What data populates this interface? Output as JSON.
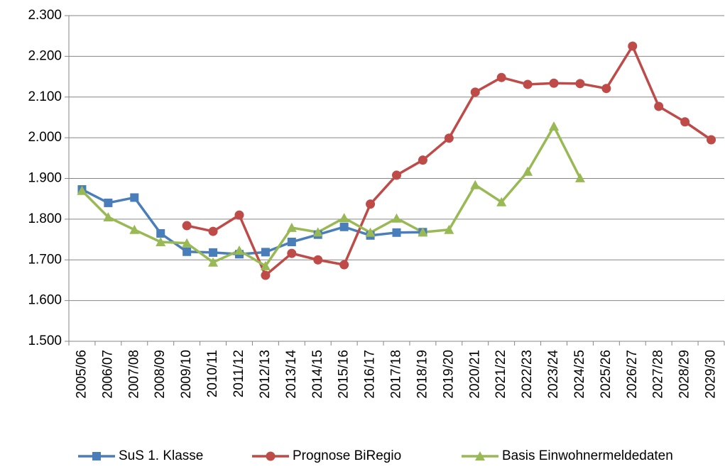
{
  "chart_data": {
    "type": "line",
    "categories": [
      "2005/06",
      "2006/07",
      "2007/08",
      "2008/09",
      "2009/10",
      "2010/11",
      "2011/12",
      "2012/13",
      "2013/14",
      "2014/15",
      "2015/16",
      "2016/17",
      "2017/18",
      "2018/19",
      "2019/20",
      "2020/21",
      "2021/22",
      "2022/23",
      "2023/24",
      "2024/25",
      "2025/26",
      "2026/27",
      "2027/28",
      "2028/29",
      "2029/30"
    ],
    "series": [
      {
        "name": "SuS 1. Klasse",
        "color": "#4a7ebb",
        "marker": "square",
        "values": [
          1873,
          1840,
          1853,
          1765,
          1720,
          1718,
          1714,
          1719,
          1744,
          1762,
          1781,
          1760,
          1767,
          1768,
          null,
          null,
          null,
          null,
          null,
          null,
          null,
          null,
          null,
          null,
          null
        ]
      },
      {
        "name": "Prognose BiRegio",
        "color": "#be4b48",
        "marker": "circle",
        "values": [
          null,
          null,
          null,
          null,
          1784,
          1770,
          1810,
          1662,
          1716,
          1700,
          1688,
          1837,
          1908,
          1945,
          1999,
          2112,
          2148,
          2131,
          2134,
          2133,
          2121,
          2225,
          2077,
          2039,
          1995
        ]
      },
      {
        "name": "Basis Einwohnermeldedaten",
        "color": "#98b954",
        "marker": "triangle",
        "values": [
          1870,
          1805,
          1774,
          1744,
          1741,
          1694,
          1723,
          1685,
          1779,
          1768,
          1803,
          1767,
          1802,
          1768,
          1774,
          1884,
          1842,
          1917,
          2028,
          1901,
          null,
          null,
          null,
          null,
          null
        ]
      }
    ],
    "ylim": [
      1500,
      2300
    ],
    "yticks": [
      {
        "value": 1500,
        "label": "1.500"
      },
      {
        "value": 1600,
        "label": "1.600"
      },
      {
        "value": 1700,
        "label": "1.700"
      },
      {
        "value": 1800,
        "label": "1.800"
      },
      {
        "value": 1900,
        "label": "1.900"
      },
      {
        "value": 2000,
        "label": "2.000"
      },
      {
        "value": 2100,
        "label": "2.100"
      },
      {
        "value": 2200,
        "label": "2.200"
      },
      {
        "value": 2300,
        "label": "2.300"
      }
    ],
    "grid": true,
    "legend": "bottom"
  }
}
